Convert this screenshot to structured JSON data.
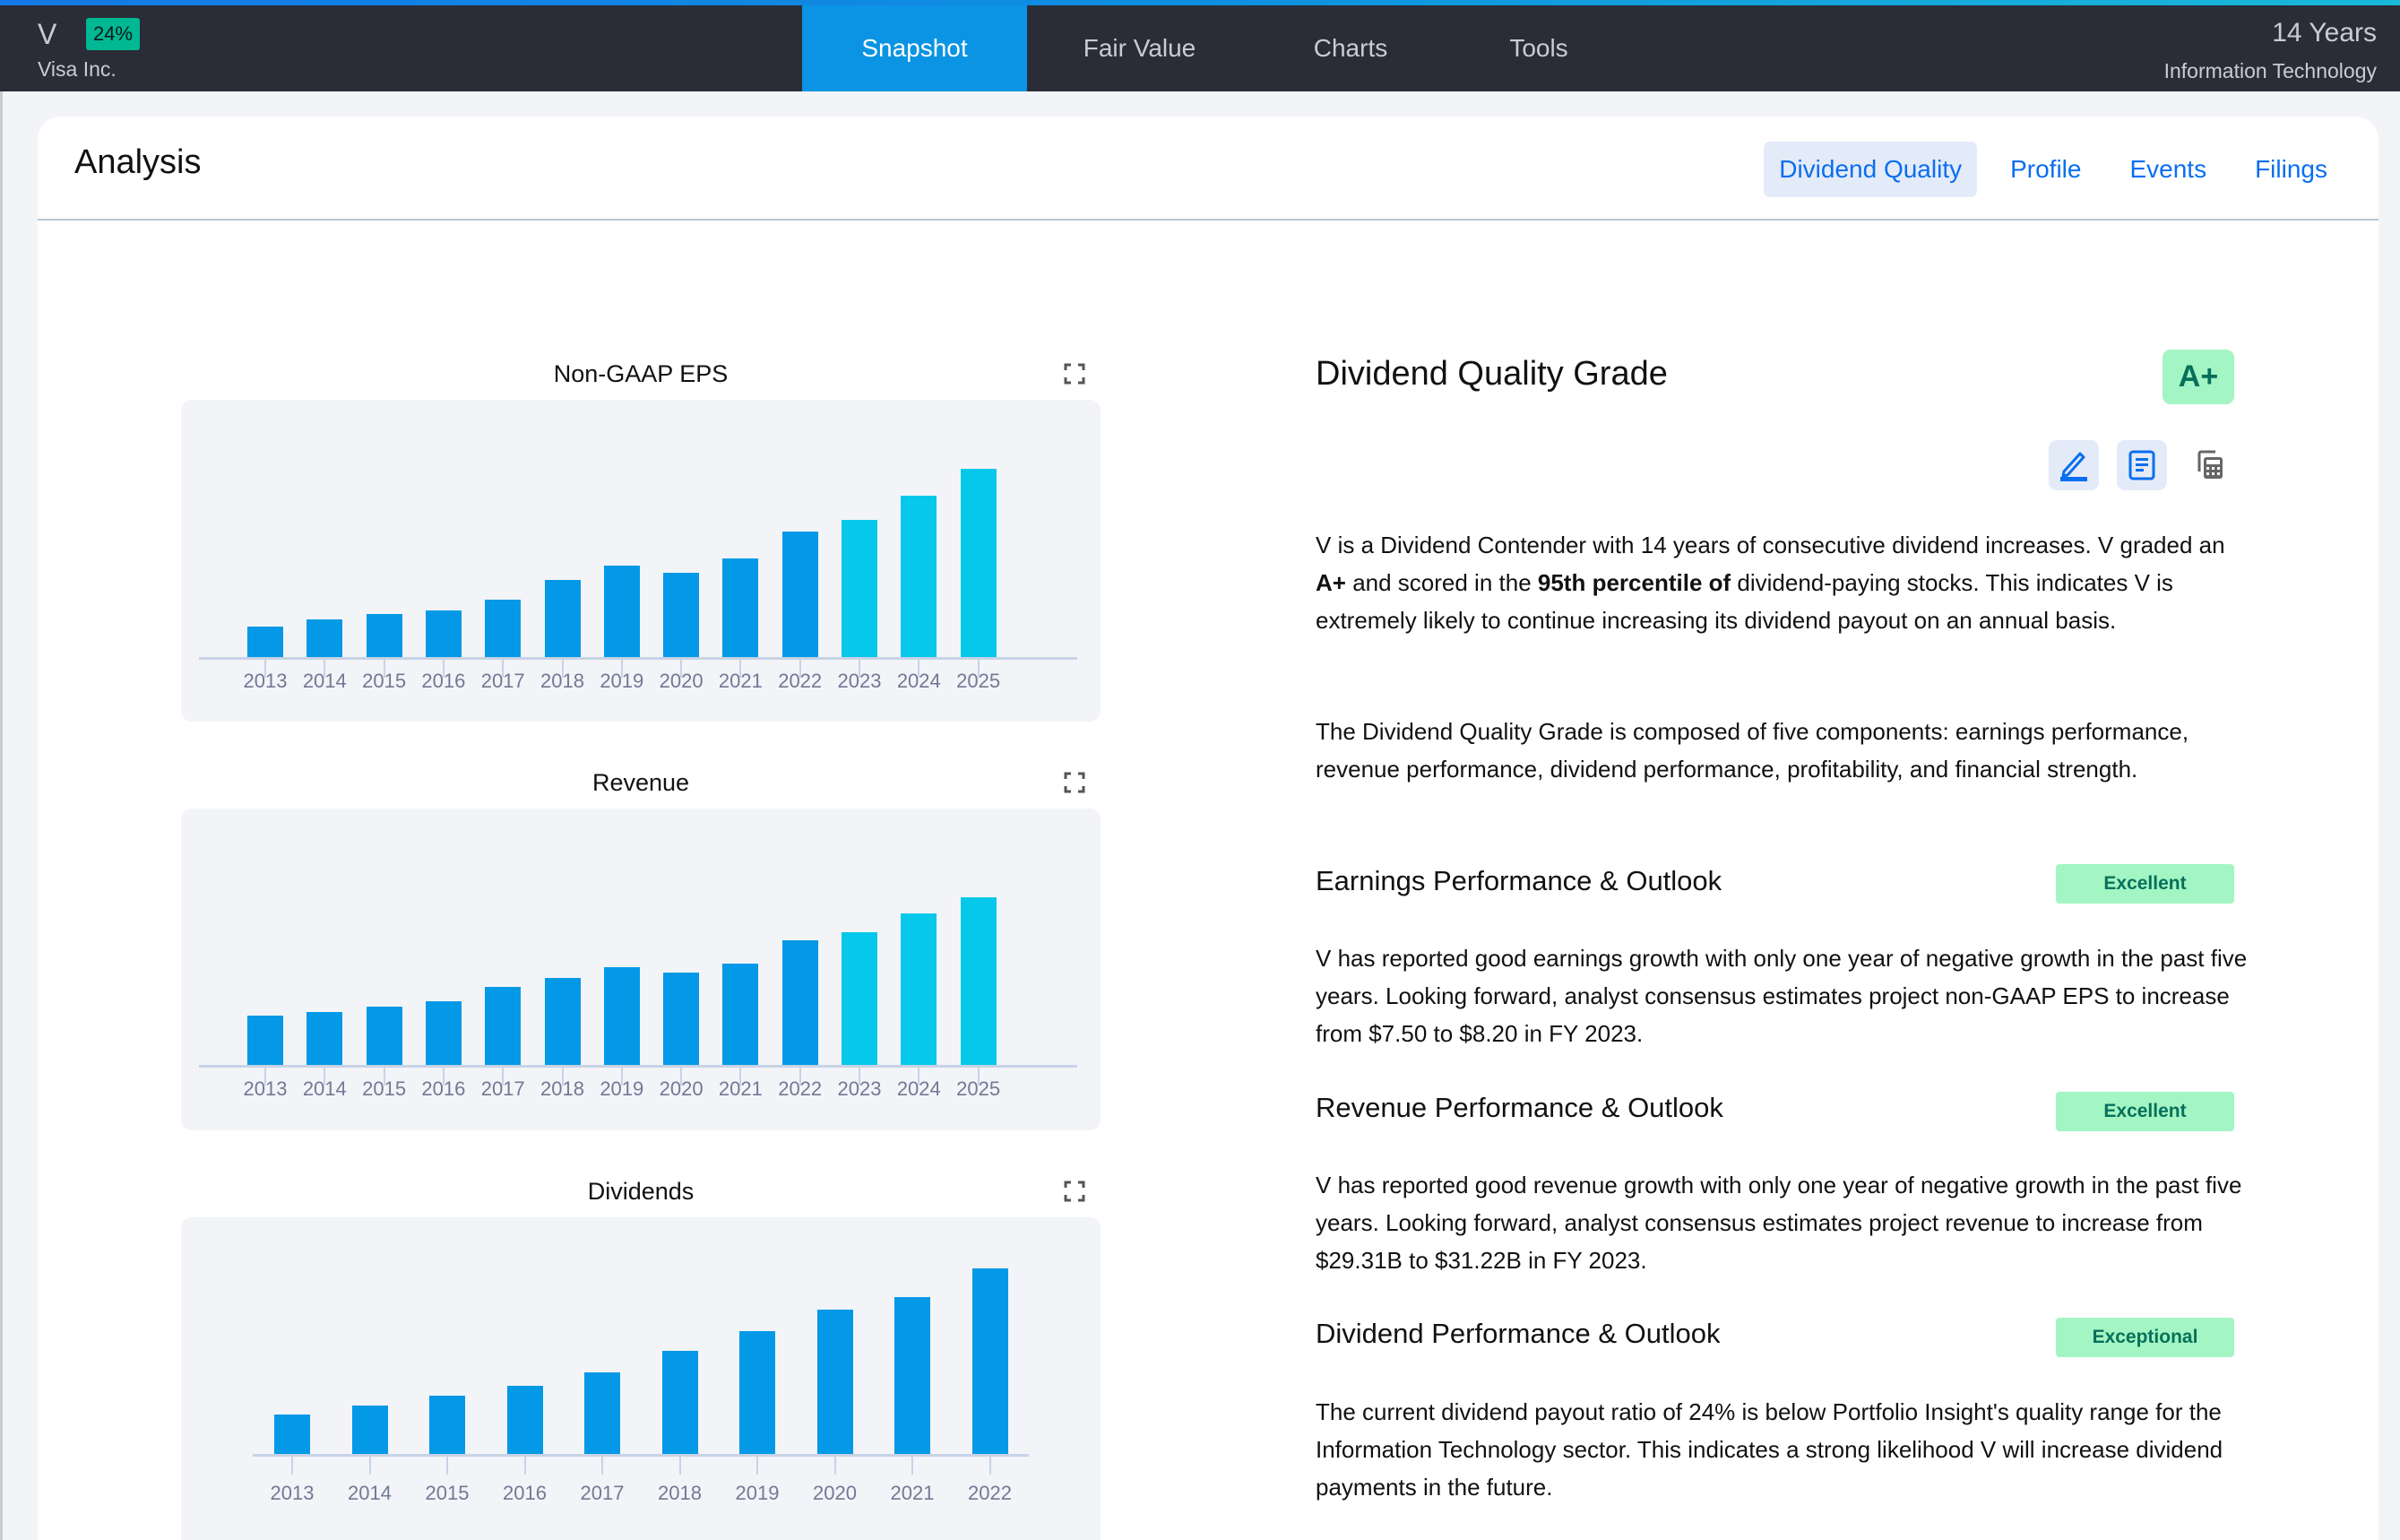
{
  "header": {
    "ticker": "V",
    "payout_badge": "24%",
    "company": "Visa Inc.",
    "years": "14 Years",
    "sector": "Information Technology",
    "nav": [
      {
        "label": "Snapshot",
        "active": true
      },
      {
        "label": "Fair Value",
        "active": false
      },
      {
        "label": "Charts",
        "active": false
      },
      {
        "label": "Tools",
        "active": false
      }
    ]
  },
  "analysis": {
    "title": "Analysis",
    "tabs": [
      {
        "label": "Dividend Quality",
        "active": true
      },
      {
        "label": "Profile",
        "active": false
      },
      {
        "label": "Events",
        "active": false
      },
      {
        "label": "Filings",
        "active": false
      }
    ]
  },
  "grade": {
    "title": "Dividend Quality Grade",
    "value": "A+",
    "tools": [
      "edit-icon",
      "document-icon",
      "calculator-icon"
    ],
    "intro": {
      "part1": "V is a Dividend Contender with 14 years of consecutive dividend increases. V graded an ",
      "grade_bold": "A+",
      "part2": " and scored in the ",
      "pct_bold": "95th percentile of",
      "part3": " dividend-paying stocks. This indicates V is extremely likely to continue increasing its dividend payout on an annual basis."
    },
    "components_text": "The Dividend Quality Grade is composed of five components: earnings performance, revenue performance, dividend performance, profitability, and financial strength.",
    "sections": [
      {
        "heading": "Earnings Performance & Outlook",
        "rating": "Excellent",
        "text": "V has reported good earnings growth with only one year of negative growth in the past five years. Looking forward, analyst consensus estimates project non-GAAP EPS to increase from $7.50 to $8.20 in FY 2023."
      },
      {
        "heading": "Revenue Performance & Outlook",
        "rating": "Excellent",
        "text": "V has reported good revenue growth with only one year of negative growth in the past five years. Looking forward, analyst consensus estimates project revenue to increase from $29.31B to $31.22B in FY 2023."
      },
      {
        "heading": "Dividend Performance & Outlook",
        "rating": "Exceptional",
        "text": "The current dividend payout ratio of 24% is below Portfolio Insight's quality range for the Information Technology sector. This indicates a strong likelihood V will increase dividend payments in the future."
      }
    ]
  },
  "colors": {
    "actual_bar": "#0399e6",
    "estimate_bar": "#05c8ea",
    "accent": "#0a6ef0",
    "rating_bg": "#a3f5c3",
    "rating_text": "#07705a",
    "nav_bg": "#2a2d37",
    "nav_active": "#0b94e3"
  },
  "chart_data": [
    {
      "type": "bar",
      "title": "Non-GAAP EPS",
      "xlabel": "",
      "ylabel": "",
      "categories": [
        "2013",
        "2014",
        "2015",
        "2016",
        "2017",
        "2018",
        "2019",
        "2020",
        "2021",
        "2022",
        "2023",
        "2024",
        "2025"
      ],
      "values": [
        1.83,
        2.26,
        2.58,
        2.8,
        3.44,
        4.61,
        5.47,
        5.04,
        5.9,
        7.5,
        8.2,
        9.64,
        11.24
      ],
      "estimate_from_index": 10,
      "ylim": [
        0,
        12.5
      ],
      "grid": false,
      "legend": null
    },
    {
      "type": "bar",
      "title": "Revenue",
      "xlabel": "",
      "ylabel": "",
      "categories": [
        "2013",
        "2014",
        "2015",
        "2016",
        "2017",
        "2018",
        "2019",
        "2020",
        "2021",
        "2022",
        "2023",
        "2024",
        "2025"
      ],
      "values": [
        11.51,
        12.36,
        13.63,
        14.9,
        18.29,
        20.41,
        22.95,
        21.68,
        23.8,
        29.31,
        31.22,
        35.67,
        39.48
      ],
      "estimate_from_index": 10,
      "ylim": [
        0,
        56
      ],
      "grid": false,
      "legend": null
    },
    {
      "type": "bar",
      "title": "Dividends",
      "xlabel": "",
      "ylabel": "",
      "categories": [
        "2013",
        "2014",
        "2015",
        "2016",
        "2017",
        "2018",
        "2019",
        "2020",
        "2021",
        "2022"
      ],
      "values": [
        0.32,
        0.39,
        0.47,
        0.55,
        0.66,
        0.83,
        0.99,
        1.17,
        1.27,
        1.5
      ],
      "estimate_from_index": null,
      "ylim": [
        0,
        1.85
      ],
      "grid": false,
      "legend": null
    }
  ]
}
